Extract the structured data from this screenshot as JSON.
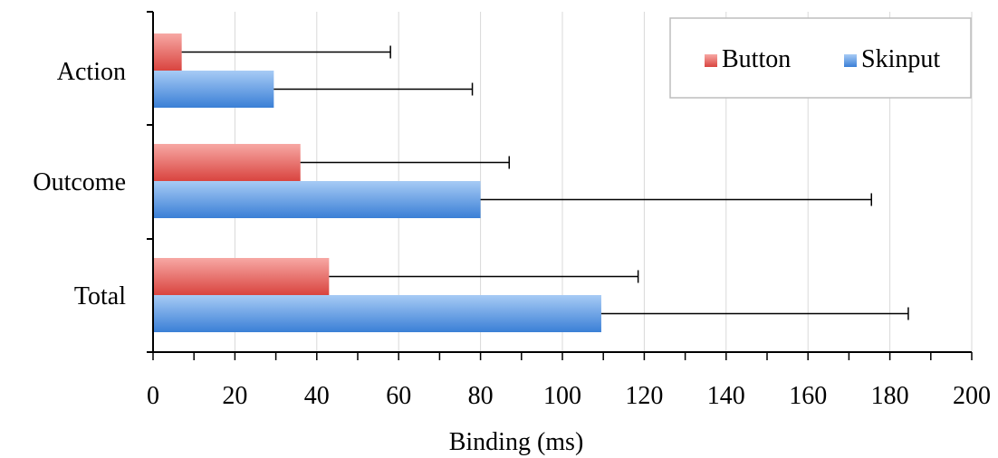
{
  "chart_data": {
    "type": "bar",
    "orientation": "horizontal",
    "categories": [
      "Action",
      "Outcome",
      "Total"
    ],
    "series": [
      {
        "name": "Button",
        "values": [
          7,
          36,
          43
        ],
        "error": [
          51,
          51,
          75.5
        ],
        "color": "#e05a55"
      },
      {
        "name": "Skinput",
        "values": [
          29.5,
          80,
          109.5
        ],
        "error": [
          48.5,
          95.5,
          75
        ],
        "color": "#4a8fe0"
      }
    ],
    "xlabel": "Binding (ms)",
    "ylabel": "",
    "xlim": [
      0,
      200
    ],
    "xticks": [
      "0",
      "20",
      "40",
      "60",
      "80",
      "100",
      "120",
      "140",
      "160",
      "180",
      "200"
    ],
    "grid": "vertical",
    "legend_position": "top-right"
  }
}
